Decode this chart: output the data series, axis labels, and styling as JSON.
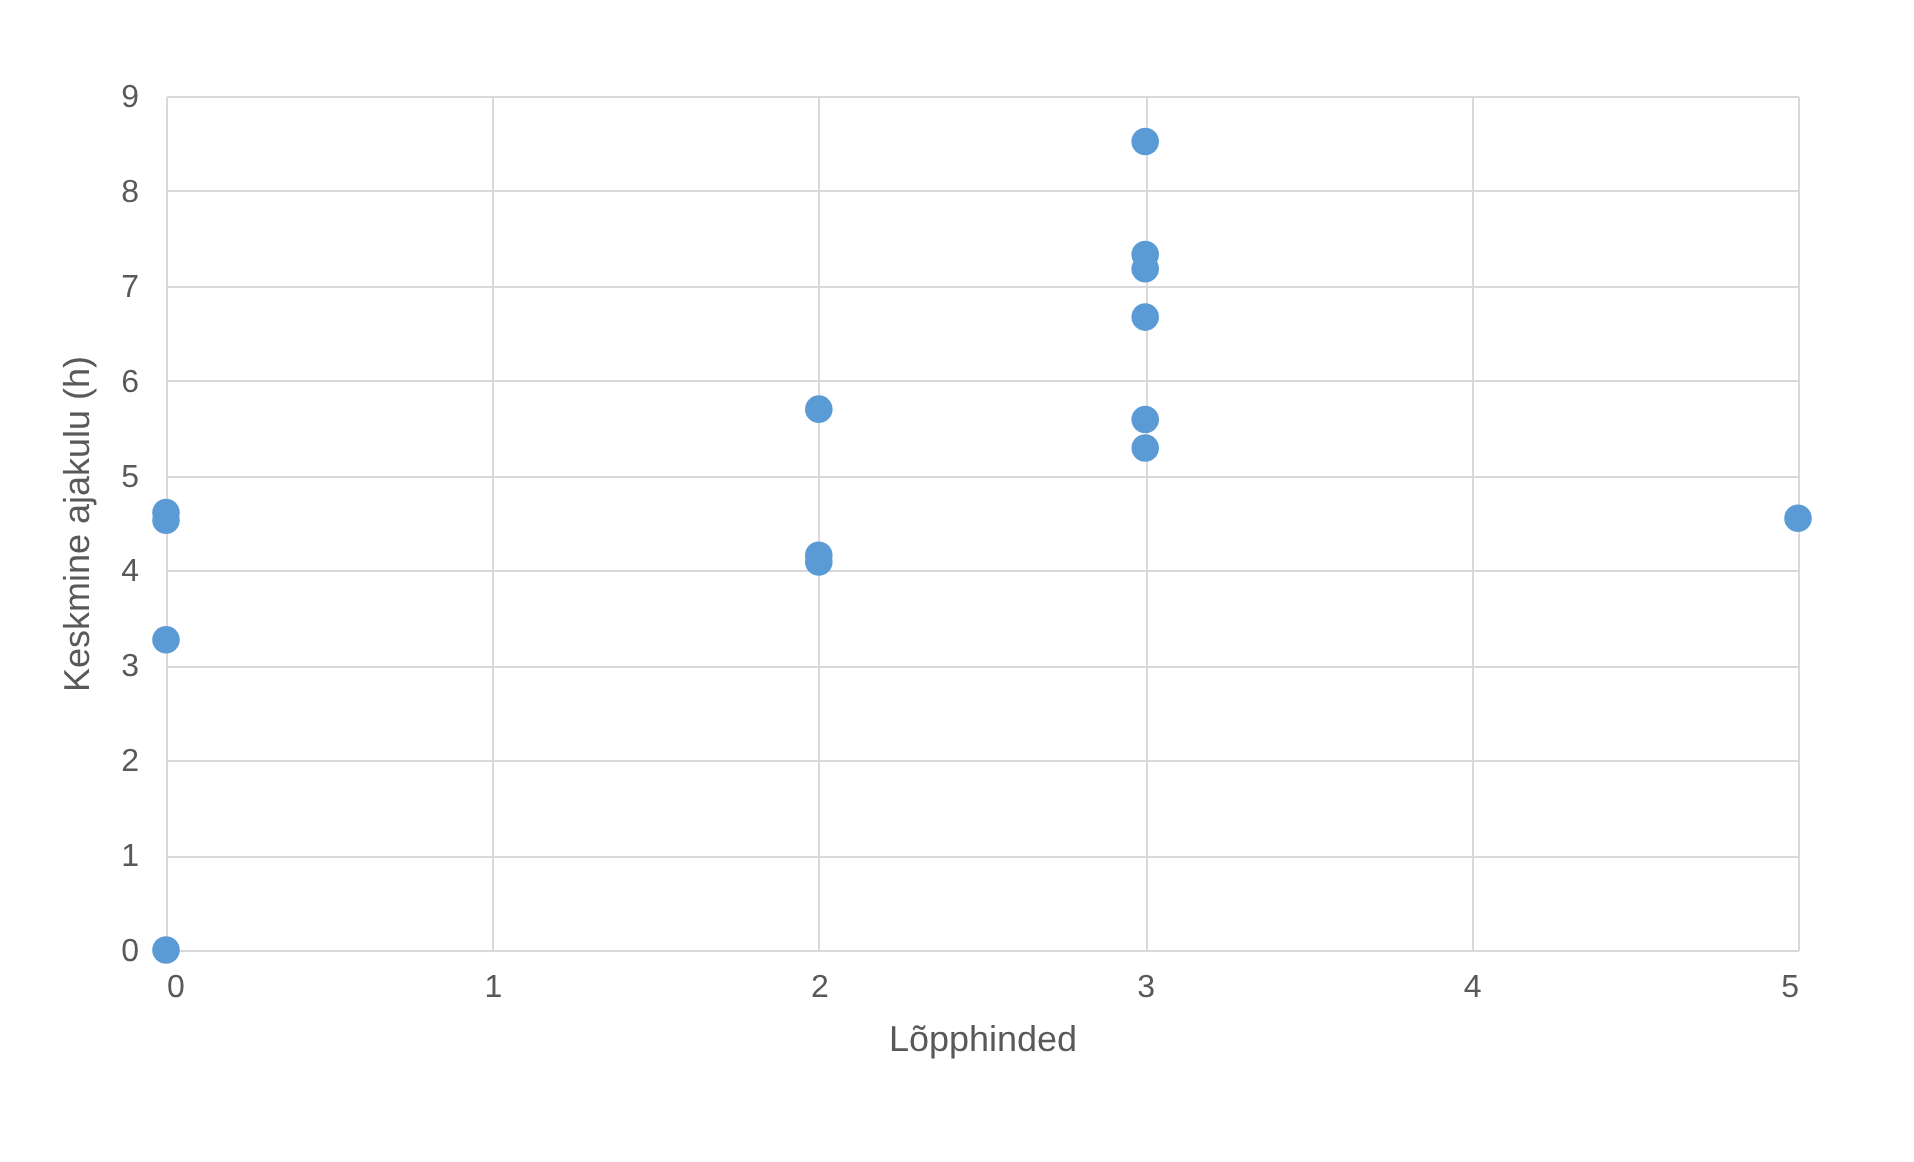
{
  "chart_data": {
    "type": "scatter",
    "xlabel": "Lõpphinded",
    "ylabel": "Keskmine ajakulu (h)",
    "x": [
      0,
      0,
      0,
      0,
      2,
      2,
      2,
      3,
      3,
      3,
      3,
      3,
      3,
      5
    ],
    "series": [
      {
        "color": "#5b9bd5",
        "values": [
          0,
          3.27,
          4.53,
          4.61,
          5.7,
          4.16,
          4.09,
          8.52,
          7.33,
          7.18,
          6.67,
          5.59,
          5.29,
          4.55
        ]
      }
    ],
    "xlim": [
      0,
      5
    ],
    "ylim": [
      0,
      9
    ],
    "xticks": [
      0,
      1,
      2,
      3,
      4,
      5
    ],
    "yticks": [
      0,
      1,
      2,
      3,
      4,
      5,
      6,
      7,
      8,
      9
    ],
    "grid": true,
    "marker": "circle"
  }
}
